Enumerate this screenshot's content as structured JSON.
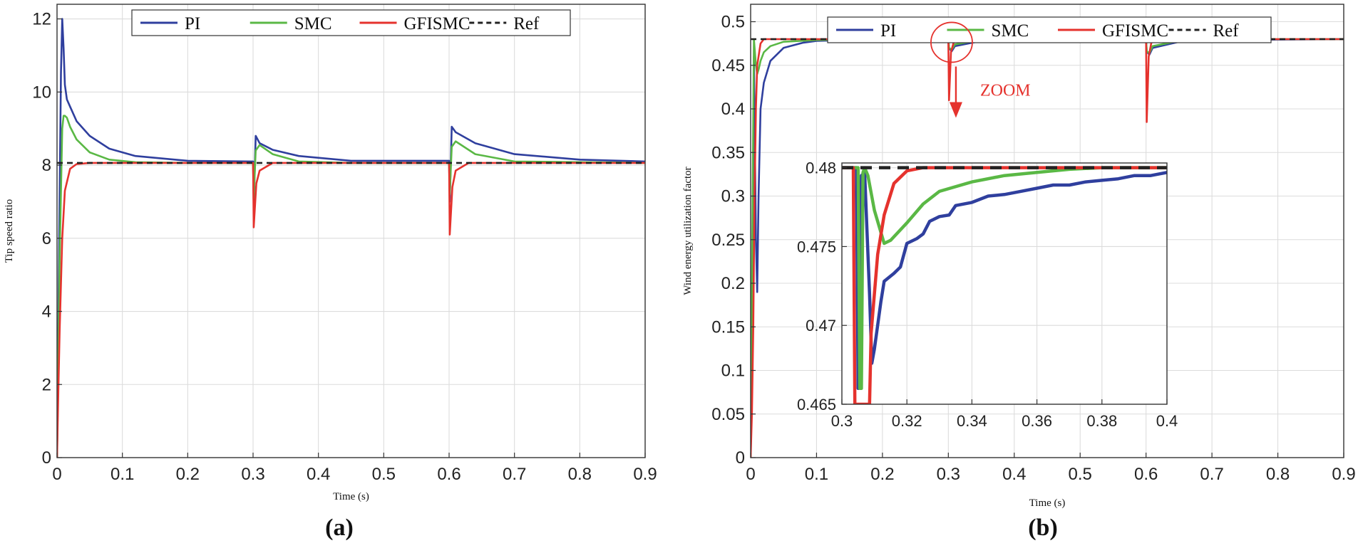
{
  "chart_data": [
    {
      "id": "a",
      "type": "line",
      "caption": "(a)",
      "title": "",
      "xlabel": "Time (s)",
      "ylabel": "Tip speed ratio",
      "xlim": [
        0,
        0.9
      ],
      "ylim": [
        0,
        12.4
      ],
      "x_ticks": [
        0,
        0.1,
        0.2,
        0.3,
        0.4,
        0.5,
        0.6,
        0.7,
        0.8,
        0.9
      ],
      "x_tick_labels": [
        "0",
        "0.1",
        "0.2",
        "0.3",
        "0.4",
        "0.5",
        "0.6",
        "0.7",
        "0.8",
        "0.9"
      ],
      "y_ticks": [
        0,
        2,
        4,
        6,
        8,
        10,
        12
      ],
      "y_tick_labels": [
        "0",
        "2",
        "4",
        "6",
        "8",
        "10",
        "12"
      ],
      "grid": true,
      "legend": {
        "position": "top-center",
        "entries": [
          "PI",
          "SMC",
          "GFISMC",
          "Ref"
        ]
      },
      "series": [
        {
          "name": "PI",
          "color": "#2f3f9e",
          "x": [
            0,
            0.003,
            0.006,
            0.008,
            0.01,
            0.012,
            0.015,
            0.02,
            0.03,
            0.05,
            0.08,
            0.12,
            0.2,
            0.3,
            0.301,
            0.304,
            0.31,
            0.33,
            0.37,
            0.45,
            0.6,
            0.601,
            0.604,
            0.61,
            0.64,
            0.7,
            0.8,
            0.9
          ],
          "y": [
            0,
            5.5,
            10.5,
            12.0,
            11.2,
            10.2,
            9.8,
            9.6,
            9.2,
            8.8,
            8.45,
            8.25,
            8.12,
            8.1,
            6.9,
            8.8,
            8.6,
            8.42,
            8.25,
            8.12,
            8.12,
            7.0,
            9.05,
            8.9,
            8.6,
            8.3,
            8.15,
            8.1
          ]
        },
        {
          "name": "SMC",
          "color": "#5ab845",
          "x": [
            0,
            0.004,
            0.008,
            0.01,
            0.012,
            0.015,
            0.02,
            0.03,
            0.05,
            0.08,
            0.12,
            0.2,
            0.3,
            0.301,
            0.304,
            0.31,
            0.33,
            0.37,
            0.45,
            0.6,
            0.601,
            0.604,
            0.61,
            0.64,
            0.7,
            0.9
          ],
          "y": [
            0,
            5.5,
            9.0,
            9.35,
            9.35,
            9.3,
            9.05,
            8.7,
            8.35,
            8.15,
            8.08,
            8.06,
            8.06,
            7.1,
            8.4,
            8.55,
            8.3,
            8.1,
            8.06,
            8.06,
            7.2,
            8.5,
            8.65,
            8.3,
            8.1,
            8.06
          ]
        },
        {
          "name": "GFISMC",
          "color": "#e5322d",
          "x": [
            0,
            0.002,
            0.004,
            0.008,
            0.012,
            0.02,
            0.03,
            0.05,
            0.3,
            0.301,
            0.305,
            0.31,
            0.33,
            0.6,
            0.601,
            0.605,
            0.61,
            0.63,
            0.9
          ],
          "y": [
            0,
            1.8,
            3.5,
            6.0,
            7.3,
            7.9,
            8.03,
            8.06,
            8.06,
            6.3,
            7.5,
            7.85,
            8.06,
            8.06,
            6.1,
            7.4,
            7.85,
            8.06,
            8.06
          ]
        },
        {
          "name": "Ref",
          "color": "#222222",
          "dash": true,
          "x": [
            0,
            0.9
          ],
          "y": [
            8.06,
            8.06
          ]
        }
      ]
    },
    {
      "id": "b",
      "type": "line",
      "caption": "(b)",
      "title": "",
      "xlabel": "Time (s)",
      "ylabel": "Wind energy utilization factor",
      "xlim": [
        0,
        0.9
      ],
      "ylim": [
        0,
        0.52
      ],
      "x_ticks": [
        0,
        0.1,
        0.2,
        0.3,
        0.4,
        0.5,
        0.6,
        0.7,
        0.8,
        0.9
      ],
      "x_tick_labels": [
        "0",
        "0.1",
        "0.2",
        "0.3",
        "0.4",
        "0.5",
        "0.6",
        "0.7",
        "0.8",
        "0.9"
      ],
      "y_ticks": [
        0,
        0.05,
        0.1,
        0.15,
        0.2,
        0.25,
        0.3,
        0.35,
        0.4,
        0.45,
        0.5
      ],
      "y_tick_labels": [
        "0",
        "0.05",
        "0.1",
        "0.15",
        "0.2",
        "0.25",
        "0.3",
        "0.35",
        "0.4",
        "0.45",
        "0.5"
      ],
      "grid": true,
      "legend": {
        "position": "top-right",
        "entries": [
          "PI",
          "SMC",
          "GFISMC",
          "Ref"
        ]
      },
      "annotation": {
        "text": "ZOOM",
        "target_x": 0.305,
        "target_y": 0.478
      },
      "series": [
        {
          "name": "PI",
          "color": "#2f3f9e",
          "x": [
            0,
            0.003,
            0.005,
            0.008,
            0.01,
            0.012,
            0.015,
            0.02,
            0.03,
            0.05,
            0.08,
            0.1,
            0.2,
            0.3,
            0.301,
            0.305,
            0.31,
            0.35,
            0.4,
            0.6,
            0.601,
            0.605,
            0.61,
            0.65,
            0.7,
            0.9
          ],
          "y": [
            0,
            0.18,
            0.46,
            0.25,
            0.19,
            0.3,
            0.4,
            0.43,
            0.455,
            0.47,
            0.476,
            0.478,
            0.48,
            0.48,
            0.47,
            0.466,
            0.472,
            0.478,
            0.479,
            0.48,
            0.466,
            0.462,
            0.47,
            0.477,
            0.479,
            0.48
          ]
        },
        {
          "name": "SMC",
          "color": "#5ab845",
          "x": [
            0,
            0.003,
            0.005,
            0.008,
            0.01,
            0.012,
            0.015,
            0.02,
            0.03,
            0.05,
            0.1,
            0.2,
            0.3,
            0.301,
            0.305,
            0.31,
            0.35,
            0.4,
            0.6,
            0.601,
            0.605,
            0.61,
            0.65,
            0.7,
            0.9
          ],
          "y": [
            0,
            0.3,
            0.48,
            0.45,
            0.44,
            0.445,
            0.455,
            0.465,
            0.472,
            0.477,
            0.479,
            0.48,
            0.48,
            0.47,
            0.468,
            0.474,
            0.479,
            0.48,
            0.48,
            0.466,
            0.464,
            0.472,
            0.478,
            0.48,
            0.48
          ]
        },
        {
          "name": "GFISMC",
          "color": "#e5322d",
          "x": [
            0,
            0.002,
            0.004,
            0.006,
            0.008,
            0.01,
            0.015,
            0.02,
            0.3,
            0.301,
            0.304,
            0.308,
            0.32,
            0.6,
            0.601,
            0.604,
            0.608,
            0.62,
            0.9
          ],
          "y": [
            0,
            0.05,
            0.15,
            0.3,
            0.4,
            0.45,
            0.475,
            0.48,
            0.48,
            0.41,
            0.465,
            0.476,
            0.48,
            0.48,
            0.385,
            0.46,
            0.476,
            0.48,
            0.48
          ]
        },
        {
          "name": "Ref",
          "color": "#222222",
          "dash": true,
          "x": [
            0,
            0.9
          ],
          "y": [
            0.48,
            0.48
          ]
        }
      ],
      "inset": {
        "type": "line",
        "xlim": [
          0.3,
          0.4
        ],
        "ylim": [
          0.465,
          0.4803
        ],
        "x_ticks": [
          0.3,
          0.32,
          0.34,
          0.36,
          0.38,
          0.4
        ],
        "x_tick_labels": [
          "0.3",
          "0.32",
          "0.34",
          "0.36",
          "0.38",
          "0.4"
        ],
        "y_ticks": [
          0.465,
          0.47,
          0.475,
          0.48
        ],
        "y_tick_labels": [
          "0.465",
          "0.47",
          "0.475",
          "0.48"
        ],
        "grid": true,
        "series": [
          {
            "name": "PI",
            "color": "#2f3f9e",
            "x": [
              0.3,
              0.3045,
              0.305,
              0.306,
              0.307,
              0.3085,
              0.3092,
              0.31,
              0.312,
              0.313,
              0.316,
              0.318,
              0.32,
              0.323,
              0.325,
              0.327,
              0.33,
              0.333,
              0.335,
              0.34,
              0.345,
              0.35,
              0.355,
              0.36,
              0.365,
              0.37,
              0.375,
              0.38,
              0.385,
              0.39,
              0.395,
              0.4
            ],
            "y": [
              0.48,
              0.48,
              0.466,
              0.4795,
              0.4797,
              0.472,
              0.4676,
              0.4685,
              0.4715,
              0.4728,
              0.4733,
              0.4737,
              0.4752,
              0.4755,
              0.4758,
              0.4766,
              0.4769,
              0.477,
              0.4776,
              0.4778,
              0.4782,
              0.4783,
              0.4785,
              0.4787,
              0.4789,
              0.4789,
              0.4791,
              0.4792,
              0.4793,
              0.4795,
              0.4795,
              0.4797
            ]
          },
          {
            "name": "SMC",
            "color": "#5ab845",
            "x": [
              0.3,
              0.305,
              0.3055,
              0.306,
              0.3065,
              0.307,
              0.308,
              0.31,
              0.313,
              0.315,
              0.32,
              0.325,
              0.33,
              0.34,
              0.35,
              0.36,
              0.37,
              0.38,
              0.4
            ],
            "y": [
              0.48,
              0.48,
              0.466,
              0.466,
              0.4797,
              0.48,
              0.4795,
              0.4773,
              0.4752,
              0.4754,
              0.4765,
              0.4777,
              0.4785,
              0.4791,
              0.4795,
              0.4797,
              0.4799,
              0.48,
              0.48
            ]
          },
          {
            "name": "GFISMC",
            "color": "#e5322d",
            "x": [
              0.3,
              0.3035,
              0.304,
              0.3085,
              0.309,
              0.311,
              0.313,
              0.316,
              0.32,
              0.325,
              0.33,
              0.4
            ],
            "y": [
              0.48,
              0.48,
              0.465,
              0.465,
              0.4695,
              0.4745,
              0.477,
              0.479,
              0.4798,
              0.48,
              0.48,
              0.48
            ]
          },
          {
            "name": "Ref",
            "color": "#222222",
            "dash": true,
            "x": [
              0.3,
              0.4
            ],
            "y": [
              0.48,
              0.48
            ]
          }
        ]
      }
    }
  ]
}
